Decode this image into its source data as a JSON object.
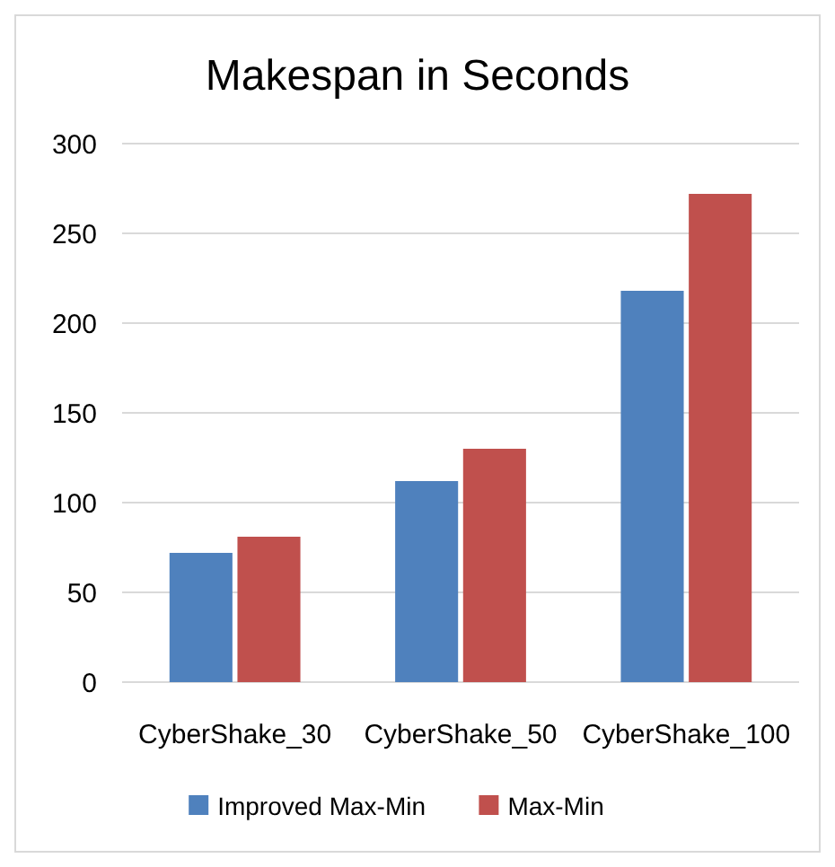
{
  "chart_data": {
    "type": "bar",
    "title": "Makespan in Seconds",
    "categories": [
      "CyberShake_30",
      "CyberShake_50",
      "CyberShake_100"
    ],
    "series": [
      {
        "name": "Improved Max-Min",
        "color": "#4f81bd",
        "values": [
          72,
          112,
          218
        ]
      },
      {
        "name": "Max-Min",
        "color": "#c0504d",
        "values": [
          81,
          130,
          272
        ]
      }
    ],
    "ylim": [
      0,
      300
    ],
    "yticks": [
      0,
      50,
      100,
      150,
      200,
      250,
      300
    ],
    "grid": "y",
    "legend": "bottom"
  }
}
